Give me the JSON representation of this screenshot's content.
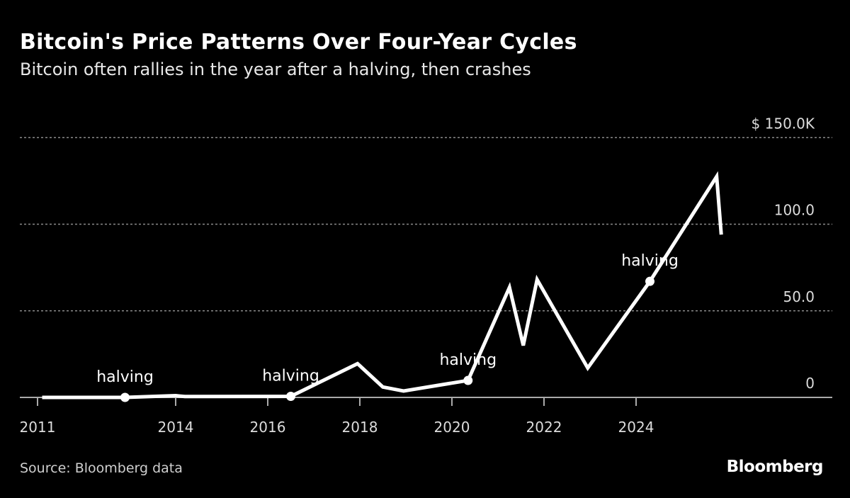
{
  "chart_data": {
    "type": "line",
    "title": "Bitcoin's Price Patterns Over Four-Year Cycles",
    "subtitle": "Bitcoin often rallies in the year after a halving, then crashes",
    "source": "Source: Bloomberg data",
    "logo": "Bloomberg",
    "ylim": [
      0,
      150
    ],
    "y_ticks": [
      {
        "value": 0,
        "label": "0"
      },
      {
        "value": 50,
        "label": "50.0"
      },
      {
        "value": 100,
        "label": "100.0"
      },
      {
        "value": 150,
        "label": "$ 150.0K"
      }
    ],
    "x_ticks": [
      {
        "value": 2011,
        "label": "2011"
      },
      {
        "value": 2014,
        "label": "2014"
      },
      {
        "value": 2016,
        "label": "2016"
      },
      {
        "value": 2018,
        "label": "2018"
      },
      {
        "value": 2020,
        "label": "2020"
      },
      {
        "value": 2022,
        "label": "2022"
      },
      {
        "value": 2024,
        "label": "2024"
      }
    ],
    "grid": true,
    "line_color": "#ffffff",
    "series": [
      {
        "x": [
          2011.1,
          2012.9,
          2014.0,
          2014.2,
          2016.5,
          2017.95,
          2018.5,
          2018.95,
          2020.35,
          2021.25,
          2021.55,
          2021.85,
          2022.95,
          2024.3,
          2025.75,
          2025.85
        ],
        "y": [
          0,
          0,
          1,
          0.5,
          0.6,
          19.5,
          6,
          3.7,
          9.8,
          63.5,
          30,
          68,
          17,
          67,
          127.5,
          94
        ]
      }
    ],
    "annotations": [
      {
        "x": 2012.9,
        "y": 0,
        "label": "halving"
      },
      {
        "x": 2016.5,
        "y": 0.6,
        "label": "halving"
      },
      {
        "x": 2020.35,
        "y": 9.8,
        "label": "halving"
      },
      {
        "x": 2024.3,
        "y": 67,
        "label": "halving"
      }
    ]
  }
}
